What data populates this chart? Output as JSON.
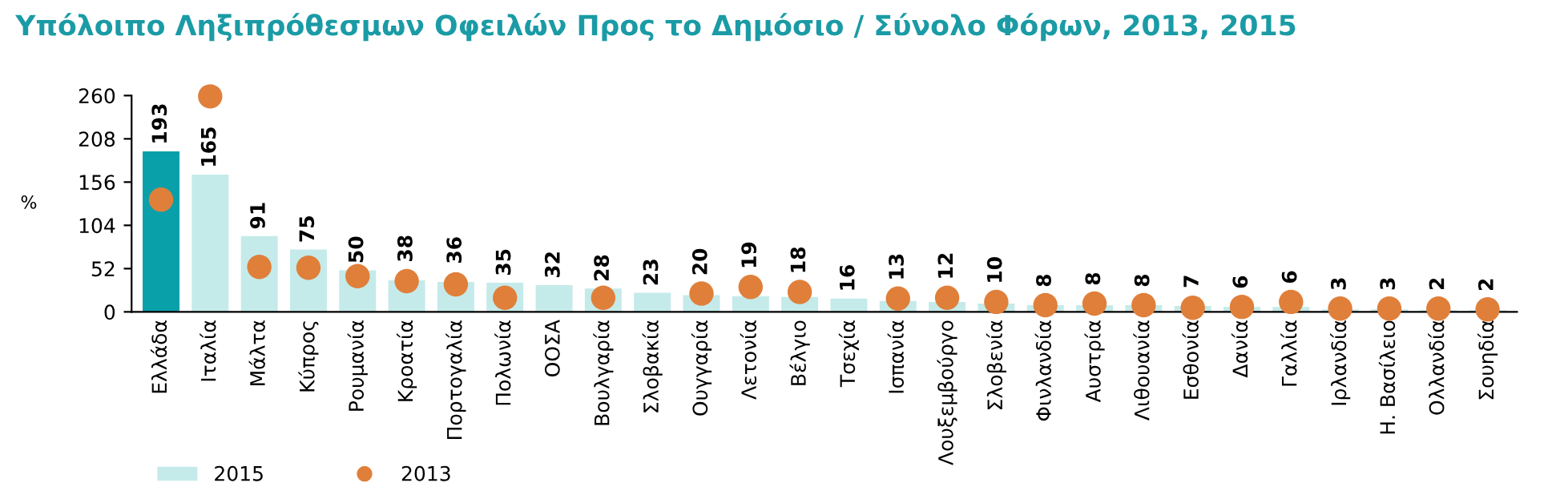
{
  "chart_data": {
    "type": "bar",
    "title": "Υπόλοιπο Ληξιπρόθεσμων Οφειλών Προς το Δημόσιο / Σύνολο Φόρων, 2013, 2015",
    "ylabel": "%",
    "categories": [
      "Ελλάδα",
      "Ιταλία",
      "Μάλτα",
      "Κύπρος",
      "Ρουμανία",
      "Κροατία",
      "Πορτογαλία",
      "Πολωνία",
      "ΟΟΣΑ",
      "Βουλγαρία",
      "Σλοβακία",
      "Ουγγαρία",
      "Λετονία",
      "Βέλγιο",
      "Τσεχία",
      "Ισπανία",
      "Λουξεμβούργο",
      "Σλοβενία",
      "Φινλανδία",
      "Αυστρία",
      "Λιθουανία",
      "Εσθονία",
      "Δανία",
      "Γαλλία",
      "Ιρλανδία",
      "Η. Βασίλειο",
      "Ολλανδία",
      "Σουηδία"
    ],
    "series": [
      {
        "name": "2015",
        "color": "#c5eaea",
        "colors": [
          "#0aa0aa",
          "#c5eaea",
          "#c5eaea",
          "#c5eaea",
          "#c5eaea",
          "#c5eaea",
          "#c5eaea",
          "#c5eaea",
          "#c5eaea",
          "#c5eaea",
          "#c5eaea",
          "#c5eaea",
          "#c5eaea",
          "#c5eaea",
          "#c5eaea",
          "#c5eaea",
          "#c5eaea",
          "#c5eaea",
          "#c5eaea",
          "#c5eaea",
          "#c5eaea",
          "#c5eaea",
          "#c5eaea",
          "#c5eaea",
          "#c5eaea",
          "#c5eaea",
          "#c5eaea",
          "#c5eaea"
        ],
        "values": [
          193,
          165,
          91,
          75,
          50,
          38,
          36,
          35,
          32,
          28,
          23,
          20,
          19,
          18,
          16,
          13,
          12,
          10,
          8,
          8,
          8,
          7,
          6,
          6,
          3,
          3,
          2,
          2
        ],
        "value_labels": [
          "193",
          "165",
          "91",
          "75",
          "50",
          "38",
          "36",
          "35",
          "32",
          "28",
          "23",
          "20",
          "19",
          "18",
          "16",
          "13",
          "12",
          "10",
          "8",
          "8",
          "8",
          "7",
          "6",
          "6",
          "3",
          "3",
          "2",
          "2"
        ]
      },
      {
        "name": "2013",
        "type": "scatter",
        "color": "#e07f3a",
        "marker": "circle",
        "values": [
          135,
          259,
          54,
          53,
          43,
          37,
          33,
          17,
          null,
          17,
          null,
          22,
          30,
          24,
          null,
          16,
          17,
          12,
          8,
          10,
          8,
          5,
          6,
          12,
          4,
          4,
          4,
          3
        ]
      }
    ],
    "ylim": [
      0,
      260
    ],
    "yticks": [
      0,
      52,
      104,
      156,
      208,
      260
    ],
    "grid": false,
    "legend": "bottom left"
  }
}
